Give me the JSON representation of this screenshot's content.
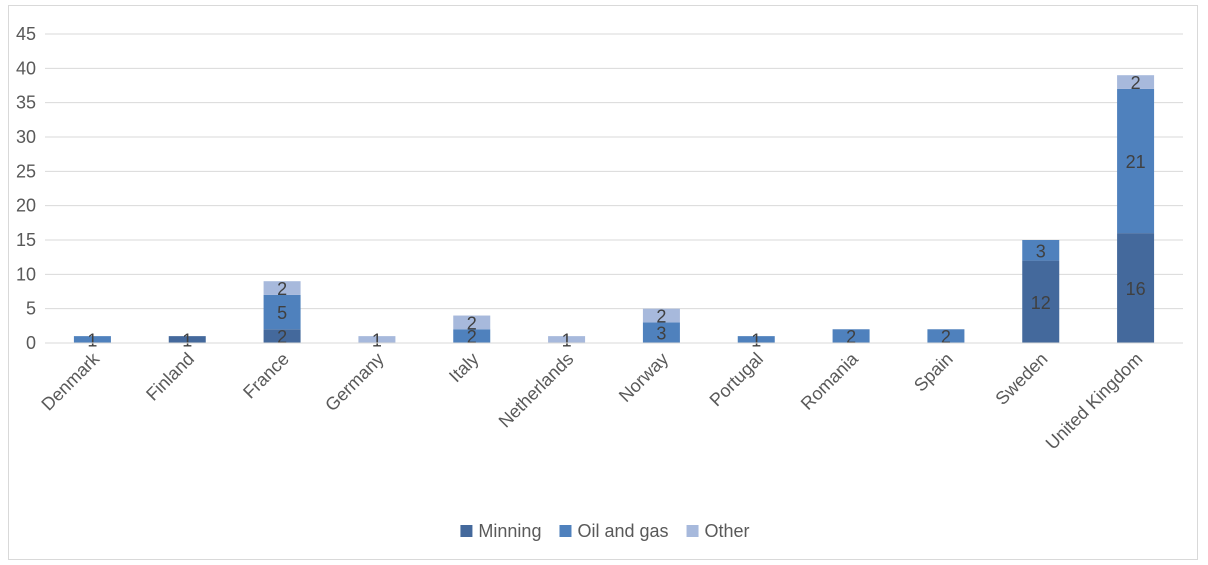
{
  "chart_data": {
    "type": "bar",
    "stacked": true,
    "categories": [
      "Denmark",
      "Finland",
      "France",
      "Germany",
      "Italy",
      "Netherlands",
      "Norway",
      "Portugal",
      "Romania",
      "Spain",
      "Sweden",
      "United Kingdom"
    ],
    "series": [
      {
        "name": "Minning",
        "color": "#44699c",
        "values": [
          0,
          1,
          2,
          0,
          0,
          0,
          0,
          0,
          0,
          0,
          12,
          16
        ]
      },
      {
        "name": "Oil and gas",
        "color": "#4f81bd",
        "values": [
          1,
          0,
          5,
          0,
          2,
          0,
          3,
          1,
          2,
          2,
          3,
          21
        ]
      },
      {
        "name": "Other",
        "color": "#a7b9dc",
        "values": [
          0,
          0,
          2,
          1,
          2,
          1,
          2,
          0,
          0,
          0,
          0,
          2
        ]
      }
    ],
    "ylim": [
      0,
      45
    ],
    "yticks": [
      0,
      5,
      10,
      15,
      20,
      25,
      30,
      35,
      40,
      45
    ],
    "grid": true,
    "legend_position": "bottom",
    "title": "",
    "xlabel": "",
    "ylabel": ""
  }
}
